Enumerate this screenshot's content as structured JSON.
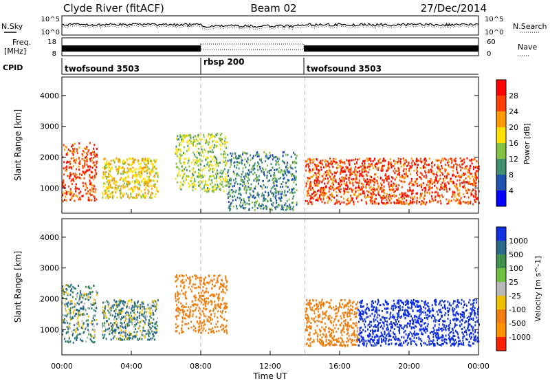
{
  "header": {
    "station": "Clyde River (fitACF)",
    "beam": "Beam 02",
    "date": "27/Dec/2014"
  },
  "top_panels": {
    "nsky_label": "N.Sky",
    "nsearch_label": "N.Search",
    "freq_label_1": "Freq.",
    "freq_label_2": "[MHz]",
    "nave_label": "Nave",
    "cpid_label": "CPID",
    "noise_ticks_left": [
      "10^5",
      "10^0"
    ],
    "noise_ticks_right": [
      "10^5",
      "10^0"
    ],
    "freq_ticks": [
      "18",
      "8"
    ],
    "nave_ticks": [
      "60",
      "0"
    ]
  },
  "cpid_segments": [
    {
      "name": "twofsound 3503",
      "start_h": 0,
      "end_h": 8
    },
    {
      "name": "rbsp 200",
      "start_h": 8,
      "end_h": 14
    },
    {
      "name": "twofsound 3503",
      "start_h": 14,
      "end_h": 24
    }
  ],
  "xaxis": {
    "label": "Time UT",
    "ticks": [
      "00:00",
      "04:00",
      "08:00",
      "12:00",
      "16:00",
      "20:00",
      "00:00"
    ]
  },
  "chart_data": [
    {
      "type": "heatmap",
      "title": "",
      "xlabel": "Time UT",
      "ylabel": "Slant Range [km]",
      "xlim": [
        0,
        24
      ],
      "ylim": [
        180,
        4600
      ],
      "yticks": [
        "1000",
        "2000",
        "3000",
        "4000"
      ],
      "colorbar": {
        "label": "Power [dB]",
        "ticks": [
          "4",
          "8",
          "12",
          "16",
          "20",
          "24",
          "28"
        ],
        "range": [
          0,
          30
        ]
      },
      "regions": [
        {
          "t0": 0.0,
          "t1": 2.0,
          "r0": 600,
          "r1": 2500,
          "value": 26
        },
        {
          "t0": 2.3,
          "t1": 5.5,
          "r0": 700,
          "r1": 2000,
          "value": 18
        },
        {
          "t0": 6.5,
          "t1": 9.5,
          "r0": 900,
          "r1": 2800,
          "value": 14
        },
        {
          "t0": 9.5,
          "t1": 13.5,
          "r0": 300,
          "r1": 2200,
          "value": 8
        },
        {
          "t0": 14.0,
          "t1": 24.0,
          "r0": 500,
          "r1": 2000,
          "value": 26
        }
      ]
    },
    {
      "type": "heatmap",
      "title": "",
      "xlabel": "Time UT",
      "ylabel": "Slant Range [km]",
      "xlim": [
        0,
        24
      ],
      "ylim": [
        180,
        4600
      ],
      "yticks": [
        "1000",
        "2000",
        "3000",
        "4000"
      ],
      "colorbar": {
        "label": "Velocity [m s^-1]",
        "ticks": [
          "1000",
          "500",
          "100",
          "25",
          "-25",
          "-100",
          "-500",
          "-1000"
        ]
      },
      "regions": [
        {
          "t0": 0.0,
          "t1": 2.0,
          "r0": 600,
          "r1": 2500,
          "value": 100
        },
        {
          "t0": 2.3,
          "t1": 5.5,
          "r0": 700,
          "r1": 2000,
          "value": 100
        },
        {
          "t0": 6.5,
          "t1": 9.5,
          "r0": 900,
          "r1": 2800,
          "value": -300
        },
        {
          "t0": 14.0,
          "t1": 17.0,
          "r0": 500,
          "r1": 2000,
          "value": -300
        },
        {
          "t0": 17.0,
          "t1": 24.0,
          "r0": 500,
          "r1": 2000,
          "value": 700
        }
      ]
    }
  ]
}
